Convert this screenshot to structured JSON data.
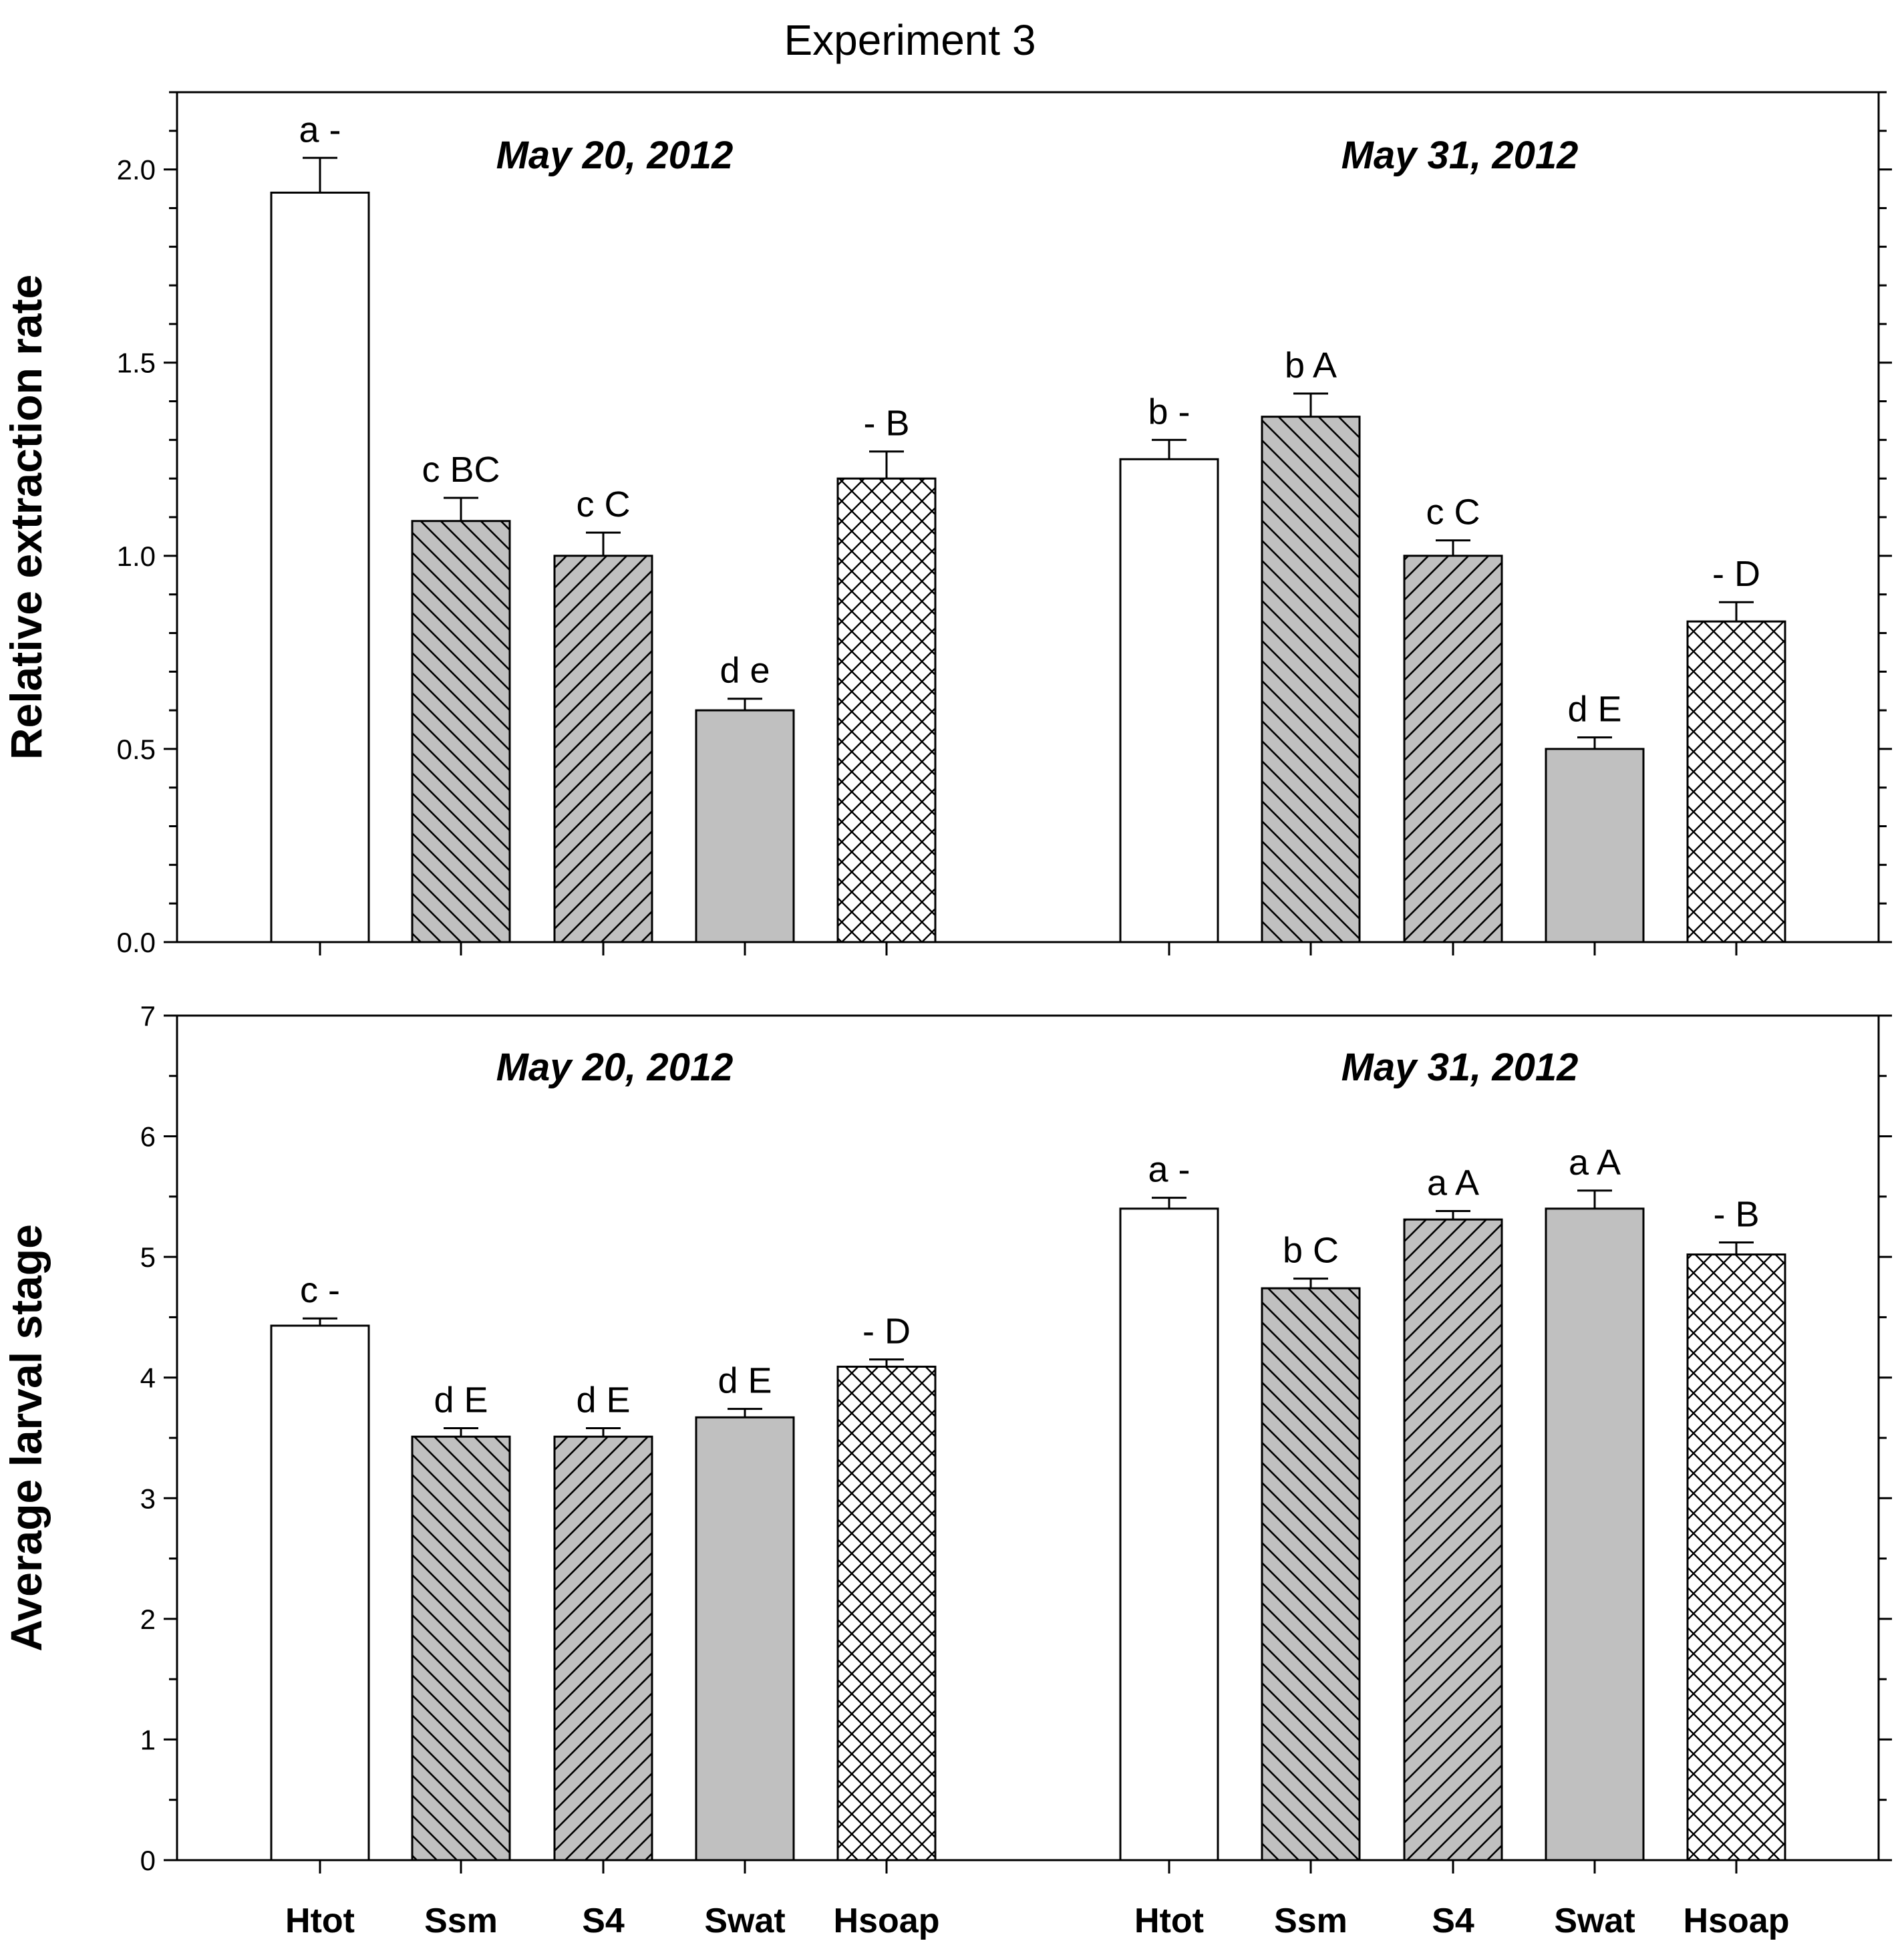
{
  "figure_title": "Experiment 3",
  "chart_data": [
    {
      "type": "bar",
      "id": "extraction",
      "ylabel": "Relative extraction rate",
      "ylim": [
        0,
        2.2
      ],
      "yticks": [
        0.0,
        0.5,
        1.0,
        1.5,
        2.0
      ],
      "ytick_labels": [
        "0.0",
        "0.5",
        "1.0",
        "1.5",
        "2.0"
      ],
      "minor_step": 0.1,
      "groups": [
        {
          "title": "May 20, 2012",
          "categories": [
            "Htot",
            "Ssm",
            "S4",
            "Swat",
            "Hsoap"
          ],
          "values": [
            1.94,
            1.09,
            1.0,
            0.6,
            1.2
          ],
          "errors": [
            0.09,
            0.06,
            0.06,
            0.03,
            0.07
          ],
          "labels": [
            "a -",
            "c BC",
            "c C",
            "d e",
            "- B"
          ]
        },
        {
          "title": "May 31, 2012",
          "categories": [
            "Htot",
            "Ssm",
            "S4",
            "Swat",
            "Hsoap"
          ],
          "values": [
            1.25,
            1.36,
            1.0,
            0.5,
            0.83
          ],
          "errors": [
            0.05,
            0.06,
            0.04,
            0.03,
            0.05
          ],
          "labels": [
            "b -",
            "b A",
            "c C",
            "d E",
            "- D"
          ]
        }
      ]
    },
    {
      "type": "bar",
      "id": "larval",
      "ylabel": "Average larval stage",
      "ylim": [
        0,
        7
      ],
      "yticks": [
        0,
        1,
        2,
        3,
        4,
        5,
        6,
        7
      ],
      "ytick_labels": [
        "0",
        "1",
        "2",
        "3",
        "4",
        "5",
        "6",
        "7"
      ],
      "minor_step": 0.5,
      "groups": [
        {
          "title": "May 20, 2012",
          "categories": [
            "Htot",
            "Ssm",
            "S4",
            "Swat",
            "Hsoap"
          ],
          "values": [
            4.43,
            3.51,
            3.51,
            3.67,
            4.09
          ],
          "errors": [
            0.06,
            0.07,
            0.07,
            0.07,
            0.06
          ],
          "labels": [
            "c -",
            "d E",
            "d E",
            "d E",
            "- D"
          ]
        },
        {
          "title": "May 31, 2012",
          "categories": [
            "Htot",
            "Ssm",
            "S4",
            "Swat",
            "Hsoap"
          ],
          "values": [
            5.4,
            4.74,
            5.31,
            5.4,
            5.02
          ],
          "errors": [
            0.09,
            0.08,
            0.07,
            0.15,
            0.1
          ],
          "labels": [
            "a -",
            "b C",
            "a A",
            "a A",
            "- B"
          ]
        }
      ]
    }
  ],
  "x_categories_bottom": [
    "Htot",
    "Ssm",
    "S4",
    "Swat",
    "Hsoap",
    "Htot",
    "Ssm",
    "S4",
    "Swat",
    "Hsoap"
  ]
}
